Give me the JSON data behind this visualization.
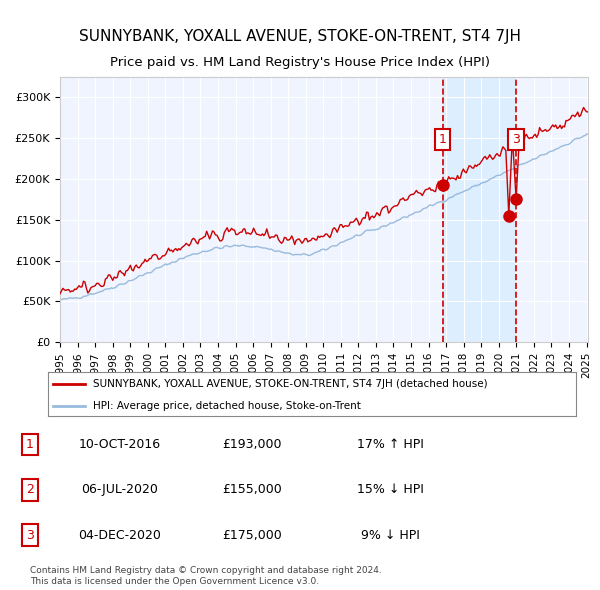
{
  "title": "SUNNYBANK, YOXALL AVENUE, STOKE-ON-TRENT, ST4 7JH",
  "subtitle": "Price paid vs. HM Land Registry's House Price Index (HPI)",
  "legend_red": "SUNNYBANK, YOXALL AVENUE, STOKE-ON-TRENT, ST4 7JH (detached house)",
  "legend_blue": "HPI: Average price, detached house, Stoke-on-Trent",
  "transactions": [
    {
      "num": 1,
      "date": "10-OCT-2016",
      "price": 193000,
      "pct": "17%",
      "dir": "↑"
    },
    {
      "num": 2,
      "date": "06-JUL-2020",
      "price": 155000,
      "pct": "15%",
      "dir": "↓"
    },
    {
      "num": 3,
      "date": "04-DEC-2020",
      "price": 175000,
      "pct": "9%",
      "dir": "↓"
    }
  ],
  "footnote1": "Contains HM Land Registry data © Crown copyright and database right 2024.",
  "footnote2": "This data is licensed under the Open Government Licence v3.0.",
  "ylim": [
    0,
    325000
  ],
  "yticks": [
    0,
    50000,
    100000,
    150000,
    200000,
    250000,
    300000
  ],
  "background_color": "#ffffff",
  "plot_bg": "#f0f4ff",
  "grid_color": "#ffffff",
  "red_color": "#cc0000",
  "blue_color": "#99bbdd",
  "vline_color": "#cc0000",
  "shade_color": "#ddeeff",
  "annotation_box_color": "#cc0000"
}
